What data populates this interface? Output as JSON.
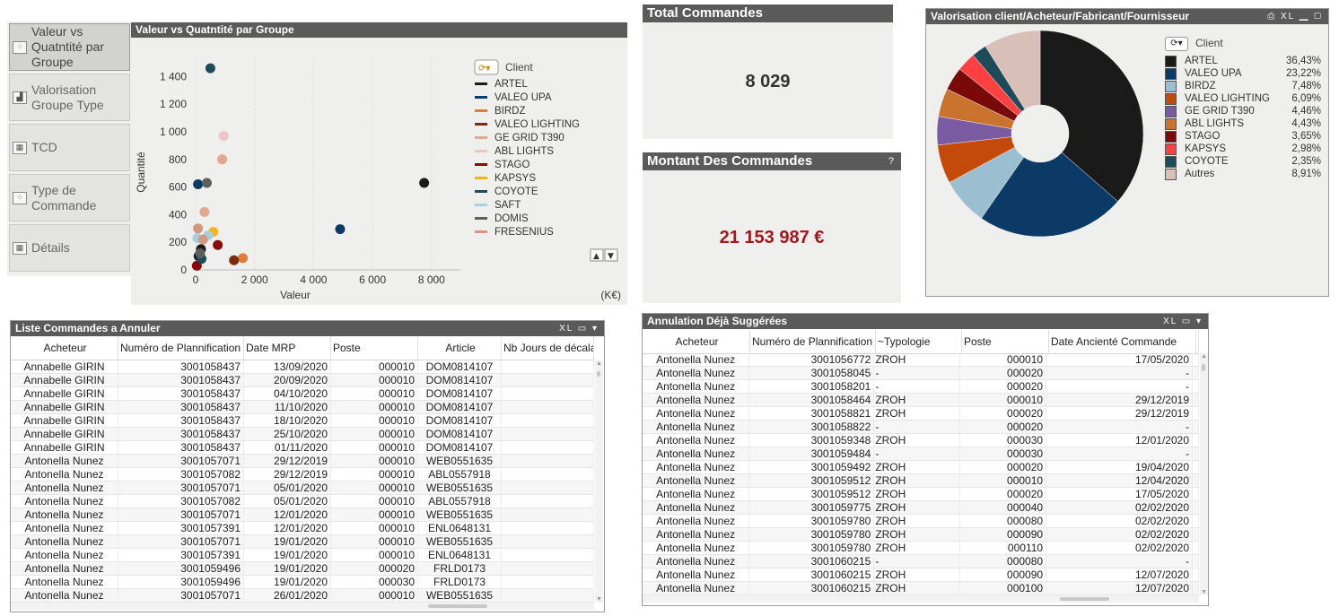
{
  "nav": [
    {
      "label": "Valeur vs Quatntité par Groupe",
      "icon": "scatter-chart-icon",
      "active": true
    },
    {
      "label": "Valorisation Groupe Type",
      "icon": "bar-chart-icon",
      "active": false
    },
    {
      "label": "TCD",
      "icon": "pivot-table-icon",
      "active": false
    },
    {
      "label": "Type de Commande",
      "icon": "scatter-chart-icon",
      "active": false
    },
    {
      "label": "Détails",
      "icon": "table-icon",
      "active": false
    }
  ],
  "scatter": {
    "caption": "Valeur vs Quatntité par Groupe",
    "legend_title": "Client",
    "unit": "(K€)"
  },
  "total_commandes": {
    "caption": "Total Commandes",
    "value": "8 029"
  },
  "montant": {
    "caption": "Montant Des Commandes",
    "help": "?",
    "value": "21 153 987 €"
  },
  "pie": {
    "caption": "Valorisation client/Acheteur/Fabricant/Fournisseur",
    "tools": "⎙ XL ▁ ▢",
    "legend_title": "Client"
  },
  "chart_data": [
    {
      "type": "scatter",
      "title": "Valeur vs Quatntité par Groupe",
      "xlabel": "Valeur",
      "ylabel": "Quantité",
      "x_unit": "(K€)",
      "xlim": [
        0,
        8400
      ],
      "ylim": [
        0,
        1500
      ],
      "x_ticks": [
        "0",
        "2 000",
        "4 000",
        "6 000",
        "8 000"
      ],
      "y_ticks": [
        "0",
        "200",
        "400",
        "600",
        "800",
        "1 000",
        "1 200",
        "1 400"
      ],
      "grid": "vertical dotted",
      "legend": "right",
      "series": [
        {
          "name": "ARTEL",
          "color": "#1a1a1a",
          "points": [
            [
              7750,
              630
            ],
            [
              180,
              150
            ],
            [
              100,
              100
            ]
          ]
        },
        {
          "name": "VALEO UPA",
          "color": "#0c3a66",
          "points": [
            [
              4900,
              295
            ],
            [
              80,
              620
            ]
          ]
        },
        {
          "name": "BIRDZ",
          "color": "#e07b39",
          "points": [
            [
              1600,
              85
            ]
          ]
        },
        {
          "name": "VALEO LIGHTING",
          "color": "#7a2e0e",
          "points": [
            [
              1300,
              70
            ]
          ]
        },
        {
          "name": "GE GRID T390",
          "color": "#e0a890",
          "points": [
            [
              900,
              800
            ],
            [
              300,
              420
            ]
          ]
        },
        {
          "name": "ABL LIGHTS",
          "color": "#e8c8c0",
          "points": [
            [
              950,
              970
            ]
          ]
        },
        {
          "name": "STAGO",
          "color": "#8a0a0a",
          "points": [
            [
              750,
              180
            ],
            [
              40,
              30
            ]
          ]
        },
        {
          "name": "KAPSYS",
          "color": "#f4b41a",
          "points": [
            [
              600,
              275
            ]
          ]
        },
        {
          "name": "COYOTE",
          "color": "#1e4b5a",
          "points": [
            [
              500,
              1460
            ],
            [
              200,
              80
            ]
          ]
        },
        {
          "name": "SAFT",
          "color": "#a8cfe0",
          "points": [
            [
              420,
              250
            ],
            [
              60,
              230
            ]
          ]
        },
        {
          "name": "DOMIS",
          "color": "#5e5e5e",
          "points": [
            [
              380,
              630
            ],
            [
              150,
              120
            ]
          ]
        },
        {
          "name": "FRESENIUS",
          "color": "#d49880",
          "points": [
            [
              80,
              300
            ],
            [
              250,
              220
            ]
          ]
        }
      ]
    },
    {
      "type": "pie",
      "title": "Valorisation client/Acheteur/Fabricant/Fournisseur",
      "legend": "right",
      "slices": [
        {
          "label": "ARTEL",
          "pct": "36,43%",
          "value": 36.43,
          "color": "#1a1a1a"
        },
        {
          "label": "VALEO UPA",
          "pct": "23,22%",
          "value": 23.22,
          "color": "#0c3a66"
        },
        {
          "label": "BIRDZ",
          "pct": "7,48%",
          "value": 7.48,
          "color": "#9bbfd0"
        },
        {
          "label": "VALEO LIGHTING",
          "pct": "6,09%",
          "value": 6.09,
          "color": "#c44a0a"
        },
        {
          "label": "GE GRID T390",
          "pct": "4,46%",
          "value": 4.46,
          "color": "#7a5aa0"
        },
        {
          "label": "ABL LIGHTS",
          "pct": "4,43%",
          "value": 4.43,
          "color": "#c9732e"
        },
        {
          "label": "STAGO",
          "pct": "3,65%",
          "value": 3.65,
          "color": "#7a0a0a"
        },
        {
          "label": "KAPSYS",
          "pct": "2,98%",
          "value": 2.98,
          "color": "#ff4040"
        },
        {
          "label": "COYOTE",
          "pct": "2,35%",
          "value": 2.35,
          "color": "#1e4b5a"
        },
        {
          "label": "Autres",
          "pct": "8,91%",
          "value": 8.91,
          "color": "#d8c0b8"
        }
      ]
    }
  ],
  "table1": {
    "caption": "Liste Commandes a Annuler",
    "tools": "XL ▭ ▾",
    "columns": [
      "Acheteur",
      "Numéro de Plannification",
      "Date MRP",
      "Poste",
      "Article",
      "Nb Jours de décala"
    ],
    "rows": [
      [
        "Annabelle GIRIN",
        "3001058437",
        "13/09/2020",
        "000010",
        "DOM0814107",
        ""
      ],
      [
        "Annabelle GIRIN",
        "3001058437",
        "20/09/2020",
        "000010",
        "DOM0814107",
        ""
      ],
      [
        "Annabelle GIRIN",
        "3001058437",
        "04/10/2020",
        "000010",
        "DOM0814107",
        ""
      ],
      [
        "Annabelle GIRIN",
        "3001058437",
        "11/10/2020",
        "000010",
        "DOM0814107",
        ""
      ],
      [
        "Annabelle GIRIN",
        "3001058437",
        "18/10/2020",
        "000010",
        "DOM0814107",
        ""
      ],
      [
        "Annabelle GIRIN",
        "3001058437",
        "25/10/2020",
        "000010",
        "DOM0814107",
        ""
      ],
      [
        "Annabelle GIRIN",
        "3001058437",
        "01/11/2020",
        "000010",
        "DOM0814107",
        ""
      ],
      [
        "Antonella Nunez",
        "3001057071",
        "29/12/2019",
        "000010",
        "WEB0551635",
        ""
      ],
      [
        "Antonella Nunez",
        "3001057082",
        "29/12/2019",
        "000010",
        "ABL0557918",
        ""
      ],
      [
        "Antonella Nunez",
        "3001057071",
        "05/01/2020",
        "000010",
        "WEB0551635",
        ""
      ],
      [
        "Antonella Nunez",
        "3001057082",
        "05/01/2020",
        "000010",
        "ABL0557918",
        ""
      ],
      [
        "Antonella Nunez",
        "3001057071",
        "12/01/2020",
        "000010",
        "WEB0551635",
        ""
      ],
      [
        "Antonella Nunez",
        "3001057391",
        "12/01/2020",
        "000010",
        "ENL0648131",
        ""
      ],
      [
        "Antonella Nunez",
        "3001057071",
        "19/01/2020",
        "000010",
        "WEB0551635",
        ""
      ],
      [
        "Antonella Nunez",
        "3001057391",
        "19/01/2020",
        "000010",
        "ENL0648131",
        ""
      ],
      [
        "Antonella Nunez",
        "3001059496",
        "19/01/2020",
        "000020",
        "FRLD0173",
        ""
      ],
      [
        "Antonella Nunez",
        "3001059496",
        "19/01/2020",
        "000030",
        "FRLD0173",
        ""
      ],
      [
        "Antonella Nunez",
        "3001057071",
        "26/01/2020",
        "000010",
        "WEB0551635",
        ""
      ]
    ]
  },
  "table2": {
    "caption": "Annulation Déjà Suggérées",
    "tools": "XL ▭ ▾",
    "columns": [
      "Acheteur",
      "Numéro de Plannification",
      "~Typologie",
      "Poste",
      "Date Ancienté Commande",
      "I"
    ],
    "rows": [
      [
        "Antonella Nunez",
        "3001056772",
        "ZROH",
        "000010",
        "17/05/2020"
      ],
      [
        "Antonella Nunez",
        "3001058045",
        "-",
        "000020",
        "-"
      ],
      [
        "Antonella Nunez",
        "3001058201",
        "-",
        "000020",
        "-"
      ],
      [
        "Antonella Nunez",
        "3001058464",
        "ZROH",
        "000010",
        "29/12/2019"
      ],
      [
        "Antonella Nunez",
        "3001058821",
        "ZROH",
        "000020",
        "29/12/2019"
      ],
      [
        "Antonella Nunez",
        "3001058822",
        "-",
        "000020",
        "-"
      ],
      [
        "Antonella Nunez",
        "3001059348",
        "ZROH",
        "000030",
        "12/01/2020"
      ],
      [
        "Antonella Nunez",
        "3001059484",
        "-",
        "000030",
        "-"
      ],
      [
        "Antonella Nunez",
        "3001059492",
        "ZROH",
        "000020",
        "19/04/2020"
      ],
      [
        "Antonella Nunez",
        "3001059512",
        "ZROH",
        "000010",
        "12/04/2020"
      ],
      [
        "Antonella Nunez",
        "3001059512",
        "ZROH",
        "000020",
        "17/05/2020"
      ],
      [
        "Antonella Nunez",
        "3001059775",
        "ZROH",
        "000040",
        "02/02/2020"
      ],
      [
        "Antonella Nunez",
        "3001059780",
        "ZROH",
        "000080",
        "02/02/2020"
      ],
      [
        "Antonella Nunez",
        "3001059780",
        "ZROH",
        "000090",
        "02/02/2020"
      ],
      [
        "Antonella Nunez",
        "3001059780",
        "ZROH",
        "000110",
        "02/02/2020"
      ],
      [
        "Antonella Nunez",
        "3001060215",
        "-",
        "000080",
        "-"
      ],
      [
        "Antonella Nunez",
        "3001060215",
        "ZROH",
        "000090",
        "12/07/2020"
      ],
      [
        "Antonella Nunez",
        "3001060215",
        "ZROH",
        "000100",
        "12/07/2020"
      ]
    ]
  }
}
